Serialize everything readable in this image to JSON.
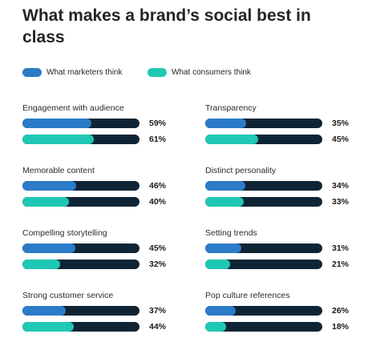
{
  "chart_data": {
    "type": "bar",
    "orientation": "horizontal",
    "title": "What makes a brand’s social best in class",
    "legend_position": "top-left",
    "colors": {
      "marketers": "#2b7bc8",
      "consumers": "#1fc8b4",
      "track": "#0f2535"
    },
    "series": [
      {
        "name": "What marketers think"
      },
      {
        "name": "What consumers think"
      }
    ],
    "xlim": [
      0,
      100
    ],
    "categories": [
      {
        "label": "Engagement with audience",
        "marketers": 59,
        "consumers": 61,
        "marketers_label": "59%",
        "consumers_label": "61%"
      },
      {
        "label": "Transparency",
        "marketers": 35,
        "consumers": 45,
        "marketers_label": "35%",
        "consumers_label": "45%"
      },
      {
        "label": "Memorable content",
        "marketers": 46,
        "consumers": 40,
        "marketers_label": "46%",
        "consumers_label": "40%"
      },
      {
        "label": "Distinct personality",
        "marketers": 34,
        "consumers": 33,
        "marketers_label": "34%",
        "consumers_label": "33%"
      },
      {
        "label": "Compelling storytelling",
        "marketers": 45,
        "consumers": 32,
        "marketers_label": "45%",
        "consumers_label": "32%"
      },
      {
        "label": "Setting trends",
        "marketers": 31,
        "consumers": 21,
        "marketers_label": "31%",
        "consumers_label": "21%"
      },
      {
        "label": "Strong customer service",
        "marketers": 37,
        "consumers": 44,
        "marketers_label": "37%",
        "consumers_label": "44%"
      },
      {
        "label": "Pop culture references",
        "marketers": 26,
        "consumers": 18,
        "marketers_label": "26%",
        "consumers_label": "18%"
      }
    ]
  }
}
